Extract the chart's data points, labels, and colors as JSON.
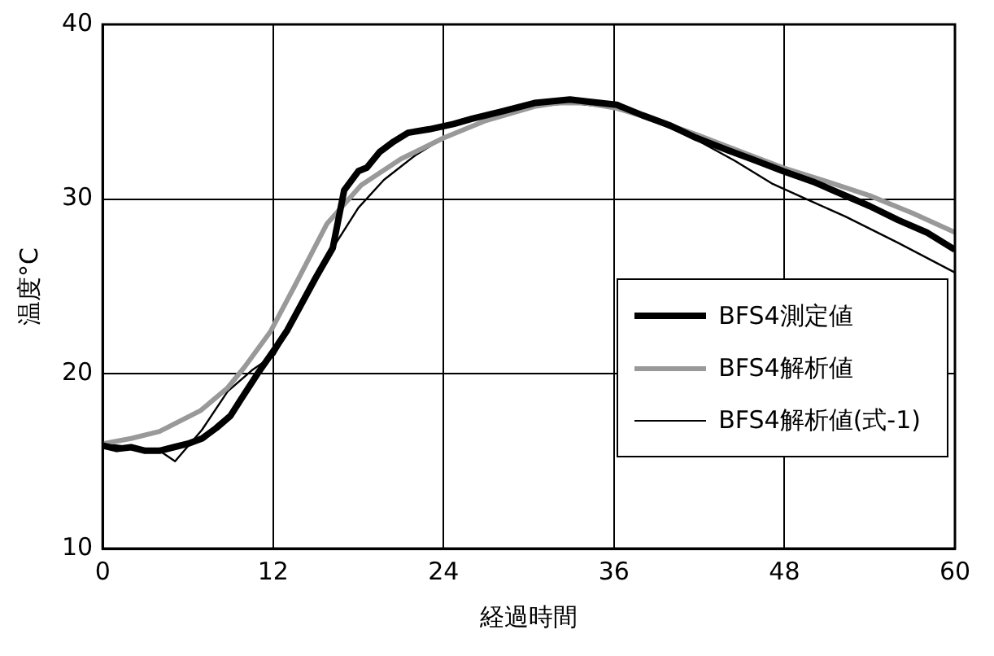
{
  "chart_data": {
    "type": "line",
    "xlabel": "経過時間",
    "ylabel": "温度°C",
    "xlim": [
      0,
      60
    ],
    "ylim": [
      10,
      40
    ],
    "xticks": [
      0,
      12,
      24,
      36,
      48,
      60
    ],
    "yticks": [
      10,
      20,
      30,
      40
    ],
    "grid": true,
    "legend": "bottom right",
    "marker": "none",
    "line_style": "solid",
    "series": [
      {
        "name": "BFS4測定値",
        "color": "#000000",
        "x": [
          0,
          1,
          2,
          3,
          4,
          5,
          6,
          7,
          8,
          9,
          9.7,
          10.9,
          12.1,
          13,
          14.2,
          15,
          16.2,
          17,
          18,
          18.6,
          19.5,
          20.5,
          21.5,
          23,
          24.7,
          26,
          28,
          30.4,
          32.9,
          34,
          36.2,
          38,
          40,
          41.8,
          44,
          46,
          47.9,
          50,
          52,
          54,
          56,
          58,
          60
        ],
        "values": [
          15.9,
          15.7,
          15.8,
          15.6,
          15.6,
          15.8,
          16,
          16.3,
          16.9,
          17.6,
          18.5,
          20,
          21.4,
          22.5,
          24.3,
          25.5,
          27.2,
          30.5,
          31.6,
          31.8,
          32.7,
          33.3,
          33.8,
          34,
          34.3,
          34.6,
          35,
          35.5,
          35.7,
          35.6,
          35.4,
          34.8,
          34.2,
          33.5,
          32.8,
          32.2,
          31.6,
          31,
          30.3,
          29.6,
          28.8,
          28.1,
          27.1
        ]
      },
      {
        "name": "BFS4解析値",
        "color": "#999999",
        "x": [
          0,
          2,
          4,
          6.9,
          8.8,
          10,
          11.8,
          13.5,
          15.8,
          18.2,
          21,
          24,
          27,
          30.4,
          32,
          34,
          36.2,
          39,
          41.8,
          45,
          47.9,
          51,
          54,
          57,
          60
        ],
        "values": [
          16,
          16.3,
          16.7,
          17.9,
          19.2,
          20.4,
          22.4,
          25,
          28.6,
          30.8,
          32.3,
          33.5,
          34.5,
          35.3,
          35.5,
          35.5,
          35.2,
          34.5,
          33.7,
          32.7,
          31.8,
          31,
          30.2,
          29.2,
          28.1
        ]
      },
      {
        "name": "BFS4解析値(式-1)",
        "color": "#000000",
        "x": [
          0,
          2,
          4,
          5.1,
          7,
          8.8,
          10.5,
          12.1,
          14,
          16.2,
          18,
          19.8,
          22,
          24,
          27,
          30.4,
          33,
          36.2,
          39,
          41.8,
          44.5,
          47.1,
          49,
          52.3,
          56,
          60
        ],
        "values": [
          16,
          15.8,
          15.6,
          15,
          16.8,
          19,
          20.2,
          21.1,
          23.8,
          27.2,
          29.5,
          31.1,
          32.5,
          33.5,
          34.5,
          35.3,
          35.5,
          35.2,
          34.4,
          33.4,
          32.2,
          30.9,
          30.2,
          29,
          27.5,
          25.8
        ]
      }
    ]
  }
}
